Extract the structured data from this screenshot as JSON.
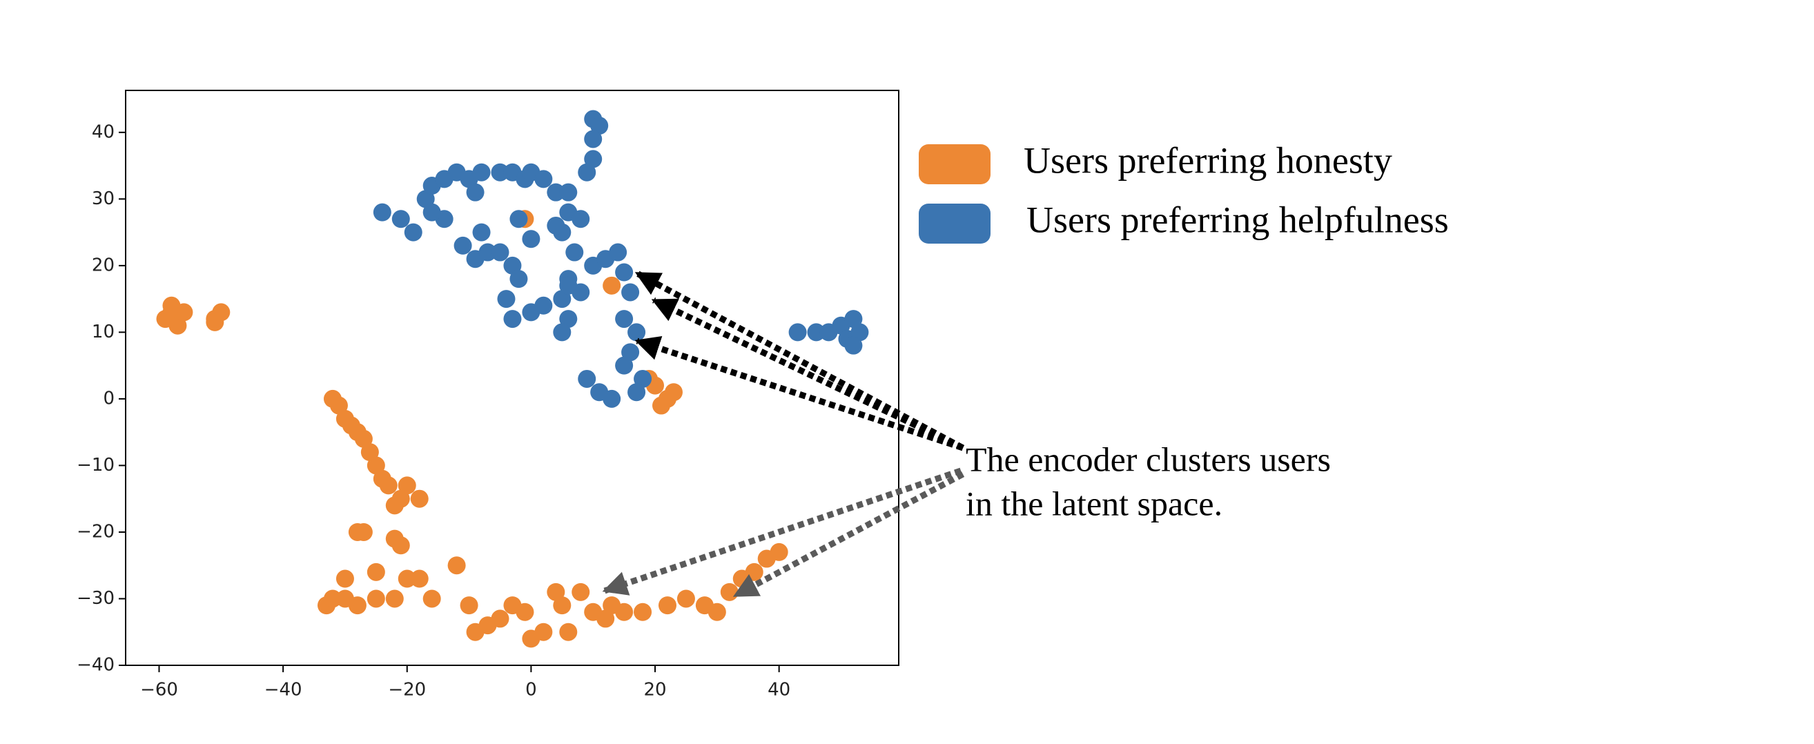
{
  "chart_data": {
    "type": "scatter",
    "xlim": [
      -65.4,
      59.3
    ],
    "ylim": [
      -40,
      46.3
    ],
    "xticks": [
      {
        "value": -60,
        "label": "−60"
      },
      {
        "value": -40,
        "label": "−40"
      },
      {
        "value": -20,
        "label": "−20"
      },
      0,
      20,
      40
    ],
    "yticks": [
      40,
      30,
      20,
      10,
      0,
      {
        "value": -10,
        "label": "−10"
      },
      {
        "value": -20,
        "label": "−20"
      },
      {
        "value": -30,
        "label": "−30"
      },
      {
        "value": -40,
        "label": "−40"
      }
    ],
    "legend": "right",
    "annotation": [
      "The encoder clusters users",
      "in the latent space."
    ],
    "series": [
      {
        "name": "Users preferring honesty",
        "color": "#ED8834",
        "x": [
          -58,
          -57,
          -59,
          -56,
          -58,
          -51,
          -50,
          -51,
          -32,
          -31,
          -30,
          -29,
          -28,
          -27,
          -26,
          -25,
          -24,
          -23,
          -22,
          -21,
          -20,
          -18,
          -22,
          -21,
          -27,
          -28,
          -33,
          -32,
          -30,
          -28,
          -25,
          -22,
          -30,
          -25,
          -20,
          -18,
          -16,
          -12,
          -10,
          -9,
          -7,
          -5,
          -3,
          -1,
          0,
          2,
          4,
          5,
          6,
          8,
          10,
          12,
          13,
          15,
          18,
          22,
          25,
          28,
          30,
          32,
          34,
          36,
          38,
          40,
          -1,
          13,
          19,
          20,
          22,
          21,
          23
        ],
        "y": [
          13,
          11,
          12,
          13,
          14,
          12,
          13,
          11.5,
          0,
          -1,
          -3,
          -4,
          -5,
          -6,
          -8,
          -10,
          -12,
          -13,
          -16,
          -15,
          -13,
          -15,
          -21,
          -22,
          -20,
          -20,
          -31,
          -30,
          -30,
          -31,
          -30,
          -30,
          -27,
          -26,
          -27,
          -27,
          -30,
          -25,
          -31,
          -35,
          -34,
          -33,
          -31,
          -32,
          -36,
          -35,
          -29,
          -31,
          -35,
          -29,
          -32,
          -33,
          -31,
          -32,
          -32,
          -31,
          -30,
          -31,
          -32,
          -29,
          -27,
          -26,
          -24,
          -23,
          27,
          17,
          3,
          2,
          0,
          -1,
          1
        ]
      },
      {
        "name": "Users preferring helpfulness",
        "color": "#3B75B1",
        "x": [
          10,
          11,
          10,
          10,
          -24,
          -21,
          -19,
          -17,
          -16,
          -14,
          -12,
          -10,
          -9,
          -8,
          -5,
          -3,
          -1,
          0,
          2,
          4,
          6,
          8,
          5,
          7,
          -14,
          -11,
          -9,
          -7,
          -5,
          -3,
          -2,
          -4,
          -3,
          0,
          2,
          5,
          6,
          8,
          10,
          12,
          14,
          15,
          16,
          15,
          17,
          16,
          15,
          18,
          17,
          13,
          11,
          9,
          6,
          5,
          -8,
          -16,
          4,
          0,
          -2,
          6,
          9,
          6,
          43,
          46,
          48,
          50,
          51,
          52,
          53,
          52
        ],
        "y": [
          42,
          41,
          39,
          36,
          28,
          27,
          25,
          30,
          32,
          33,
          34,
          33,
          31,
          34,
          34,
          34,
          33,
          34,
          33,
          31,
          28,
          27,
          25,
          22,
          27,
          23,
          21,
          22,
          22,
          20,
          18,
          15,
          12,
          13,
          14,
          15,
          18,
          16,
          20,
          21,
          22,
          19,
          16,
          12,
          10,
          7,
          5,
          3,
          1,
          0,
          1,
          3,
          12,
          10,
          25,
          28,
          26,
          24,
          27,
          31,
          34,
          17,
          10,
          10,
          10,
          11,
          9,
          12,
          10,
          8
        ]
      }
    ]
  }
}
